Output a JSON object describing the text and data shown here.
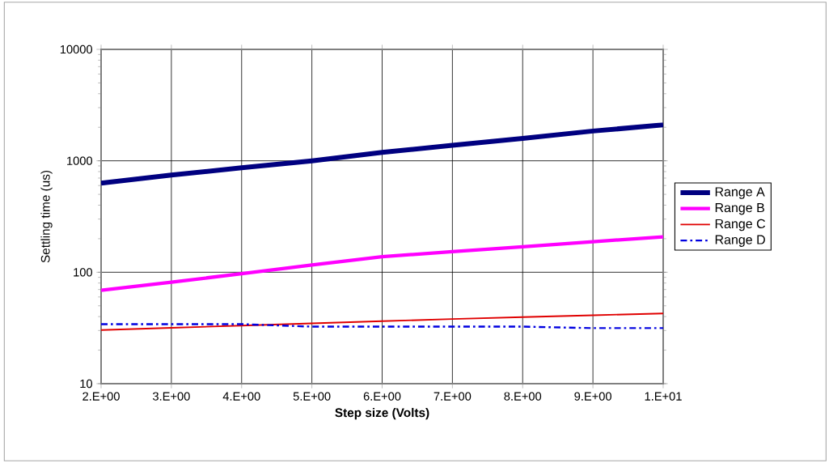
{
  "chart_data": {
    "type": "line",
    "xlabel": "Step size (Volts)",
    "ylabel": "Settling time (us)",
    "log": "y",
    "grid": true,
    "legend": "right",
    "ylim": [
      10,
      10000
    ],
    "yticks": [
      10,
      100,
      1000,
      10000
    ],
    "categories": [
      "2.E+00",
      "3.E+00",
      "4.E+00",
      "5.E+00",
      "6.E+00",
      "7.E+00",
      "8.E+00",
      "9.E+00",
      "1.E+01"
    ],
    "series": [
      {
        "name": "Range A",
        "color": "#000080",
        "line_style": "solid",
        "values": [
          630,
          745,
          865,
          1000,
          1190,
          1380,
          1590,
          1850,
          2100
        ]
      },
      {
        "name": "Range B",
        "color": "#ff00ff",
        "line_style": "solid",
        "values": [
          69,
          81.5,
          97,
          116,
          138,
          153,
          169,
          188,
          208
        ]
      },
      {
        "name": "Range C",
        "color": "#e00000",
        "line_style": "solid",
        "values": [
          30.3,
          31.7,
          33.2,
          34.8,
          36.4,
          38,
          39.6,
          41.1,
          42.7
        ]
      },
      {
        "name": "Range D",
        "color": "#0000e0",
        "line_style": "dashdotted",
        "values": [
          34.2,
          34.2,
          34.2,
          32.5,
          32.5,
          32.5,
          32.5,
          31.5,
          31.5
        ]
      }
    ]
  }
}
